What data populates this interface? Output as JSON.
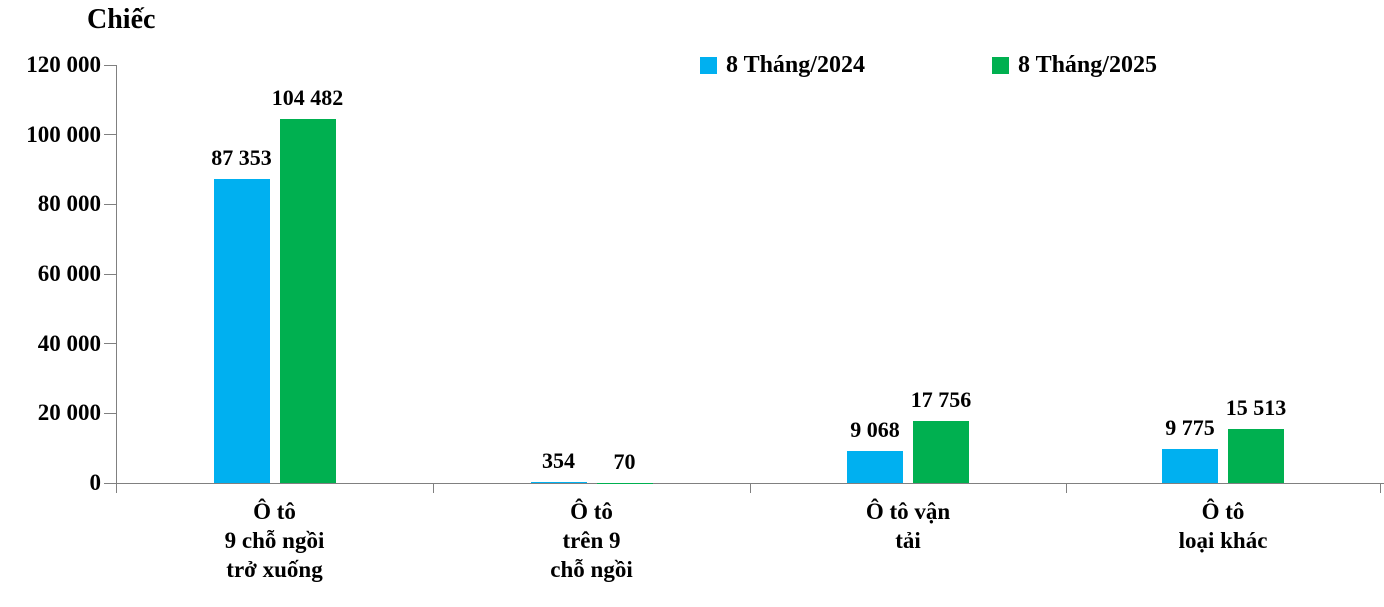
{
  "chart_data": {
    "type": "bar",
    "unit_label": "Chiếc",
    "categories": [
      "Ô tô\n9 chỗ ngồi\ntrở xuống",
      "Ô tô\ntrên 9\nchỗ ngồi",
      "Ô tô vận\ntải",
      "Ô tô\nloại khác"
    ],
    "series": [
      {
        "name": "8 Tháng/2024",
        "color": "#00B0F0",
        "values": [
          87353,
          354,
          9068,
          9775
        ],
        "value_labels": [
          "87 353",
          "354",
          "9 068",
          "9 775"
        ]
      },
      {
        "name": "8 Tháng/2025",
        "color": "#00B050",
        "values": [
          104482,
          70,
          17756,
          15513
        ],
        "value_labels": [
          "104 482",
          "70",
          "17 756",
          "15 513"
        ]
      }
    ],
    "ylim": [
      0,
      120000
    ],
    "yticks": [
      0,
      20000,
      40000,
      60000,
      80000,
      100000,
      120000
    ],
    "ytick_labels": [
      "0",
      "20 000",
      "40 000",
      "60 000",
      "80 000",
      "100 000",
      "120 000"
    ],
    "grid": false,
    "legend_position": "top"
  }
}
